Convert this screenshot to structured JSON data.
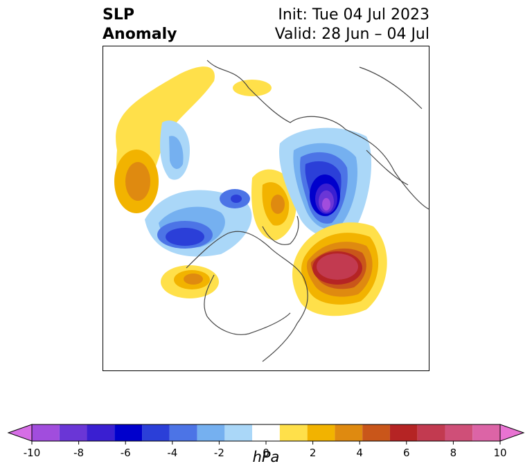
{
  "header": {
    "title_line1": "SLP",
    "title_line2": "Anomaly",
    "init": "Init: Tue 04 Jul 2023",
    "valid": "Valid: 28 Jun – 04 Jul"
  },
  "colorbar": {
    "unit": "hPa",
    "ticks": [
      "-10",
      "-8",
      "-6",
      "-4",
      "-2",
      "0",
      "2",
      "4",
      "6",
      "8",
      "10"
    ],
    "colors": [
      "#d66ee6",
      "#a14ddd",
      "#6a36d6",
      "#3a1fd1",
      "#0000cc",
      "#2b3fd8",
      "#4c74e6",
      "#75b0f0",
      "#aad7f8",
      "#ffffff",
      "#ffe04a",
      "#f2b300",
      "#df8a10",
      "#c9561a",
      "#b52424",
      "#c23a50",
      "#cf4f78",
      "#dc64a6",
      "#e873d2"
    ]
  },
  "chart_data": {
    "type": "heatmap",
    "title": "SLP Anomaly",
    "subtitle": [
      "Init: Tue 04 Jul 2023",
      "Valid: 28 Jun – 04 Jul"
    ],
    "colorbar_label": "hPa",
    "colorbar_range": [
      -10,
      10
    ],
    "colorbar_ticks": [
      -10,
      -8,
      -6,
      -4,
      -2,
      0,
      2,
      4,
      6,
      8,
      10
    ],
    "map": "Northern Hemisphere polar stereographic"
  }
}
